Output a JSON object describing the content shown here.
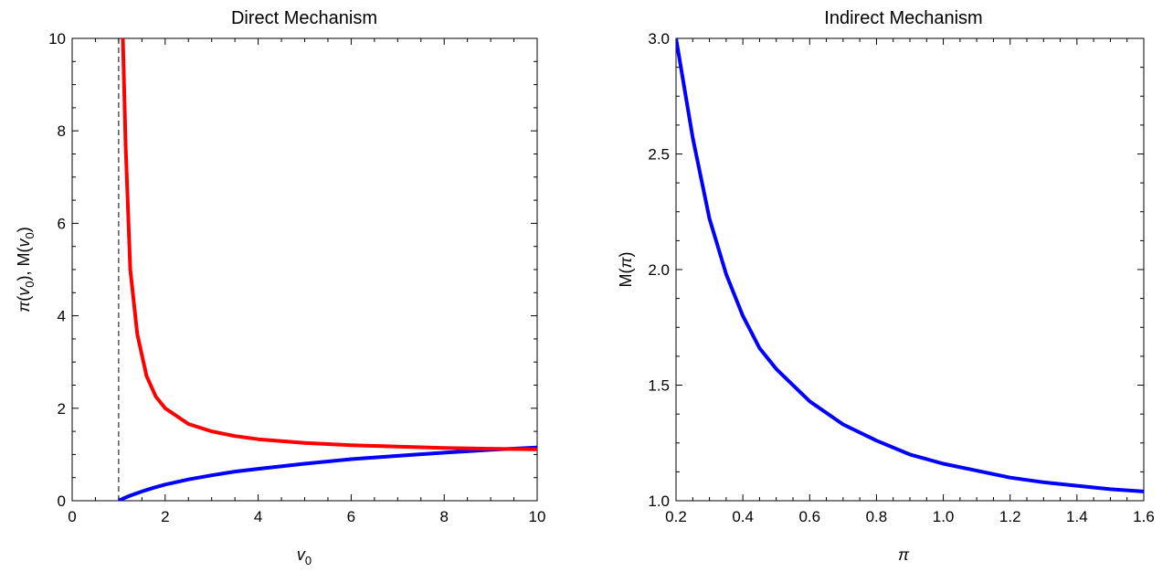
{
  "chart_data": [
    {
      "type": "line",
      "title": "Direct Mechanism",
      "xlabel": "v0",
      "ylabel": "π(v0), M(v0)",
      "xlim": [
        0,
        10
      ],
      "ylim": [
        0,
        10
      ],
      "xticks": [
        0,
        2,
        4,
        6,
        8,
        10
      ],
      "yticks": [
        0,
        2,
        4,
        6,
        8,
        10
      ],
      "x_tick_labels": [
        "0",
        "2",
        "4",
        "6",
        "8",
        "10"
      ],
      "y_tick_labels": [
        "0",
        "2",
        "4",
        "6",
        "8",
        "10"
      ],
      "grid": false,
      "reference_lines": [
        {
          "orientation": "vertical",
          "x": 1,
          "style": "dashed",
          "color": "#000000"
        }
      ],
      "series": [
        {
          "color": "#ff0000",
          "x": [
            1.09,
            1.15,
            1.25,
            1.4,
            1.6,
            1.8,
            2.0,
            2.5,
            3.0,
            3.5,
            4.0,
            5.0,
            6.0,
            7.0,
            8.0,
            9.0,
            10.0
          ],
          "y": [
            10.0,
            7.7,
            5.0,
            3.6,
            2.7,
            2.25,
            2.0,
            1.66,
            1.5,
            1.4,
            1.33,
            1.25,
            1.2,
            1.17,
            1.14,
            1.125,
            1.11
          ]
        },
        {
          "color": "#0000ff",
          "x": [
            1.0,
            1.1,
            1.25,
            1.5,
            1.75,
            2.0,
            2.5,
            3.0,
            3.5,
            4.0,
            5.0,
            6.0,
            7.0,
            8.0,
            9.0,
            10.0
          ],
          "y": [
            0.0,
            0.05,
            0.11,
            0.2,
            0.28,
            0.35,
            0.46,
            0.55,
            0.63,
            0.69,
            0.8,
            0.9,
            0.97,
            1.04,
            1.1,
            1.15
          ]
        }
      ]
    },
    {
      "type": "line",
      "title": "Indirect Mechanism",
      "xlabel": "π",
      "ylabel": "M(π)",
      "xlim": [
        0.2,
        1.6
      ],
      "ylim": [
        1.0,
        3.0
      ],
      "xticks": [
        0.2,
        0.4,
        0.6,
        0.8,
        1.0,
        1.2,
        1.4,
        1.6
      ],
      "yticks": [
        1.0,
        1.5,
        2.0,
        2.5,
        3.0
      ],
      "x_tick_labels": [
        "0.2",
        "0.4",
        "0.6",
        "0.8",
        "1.0",
        "1.2",
        "1.4",
        "1.6"
      ],
      "y_tick_labels": [
        "1.0",
        "1.5",
        "2.0",
        "2.5",
        "3.0"
      ],
      "grid": false,
      "series": [
        {
          "color": "#0000ff",
          "x": [
            0.2,
            0.25,
            0.3,
            0.35,
            0.4,
            0.45,
            0.5,
            0.6,
            0.7,
            0.8,
            0.9,
            1.0,
            1.1,
            1.2,
            1.3,
            1.4,
            1.5,
            1.6
          ],
          "y": [
            3.0,
            2.57,
            2.22,
            1.98,
            1.8,
            1.66,
            1.57,
            1.43,
            1.33,
            1.26,
            1.2,
            1.16,
            1.13,
            1.1,
            1.08,
            1.065,
            1.05,
            1.04
          ]
        }
      ]
    }
  ]
}
